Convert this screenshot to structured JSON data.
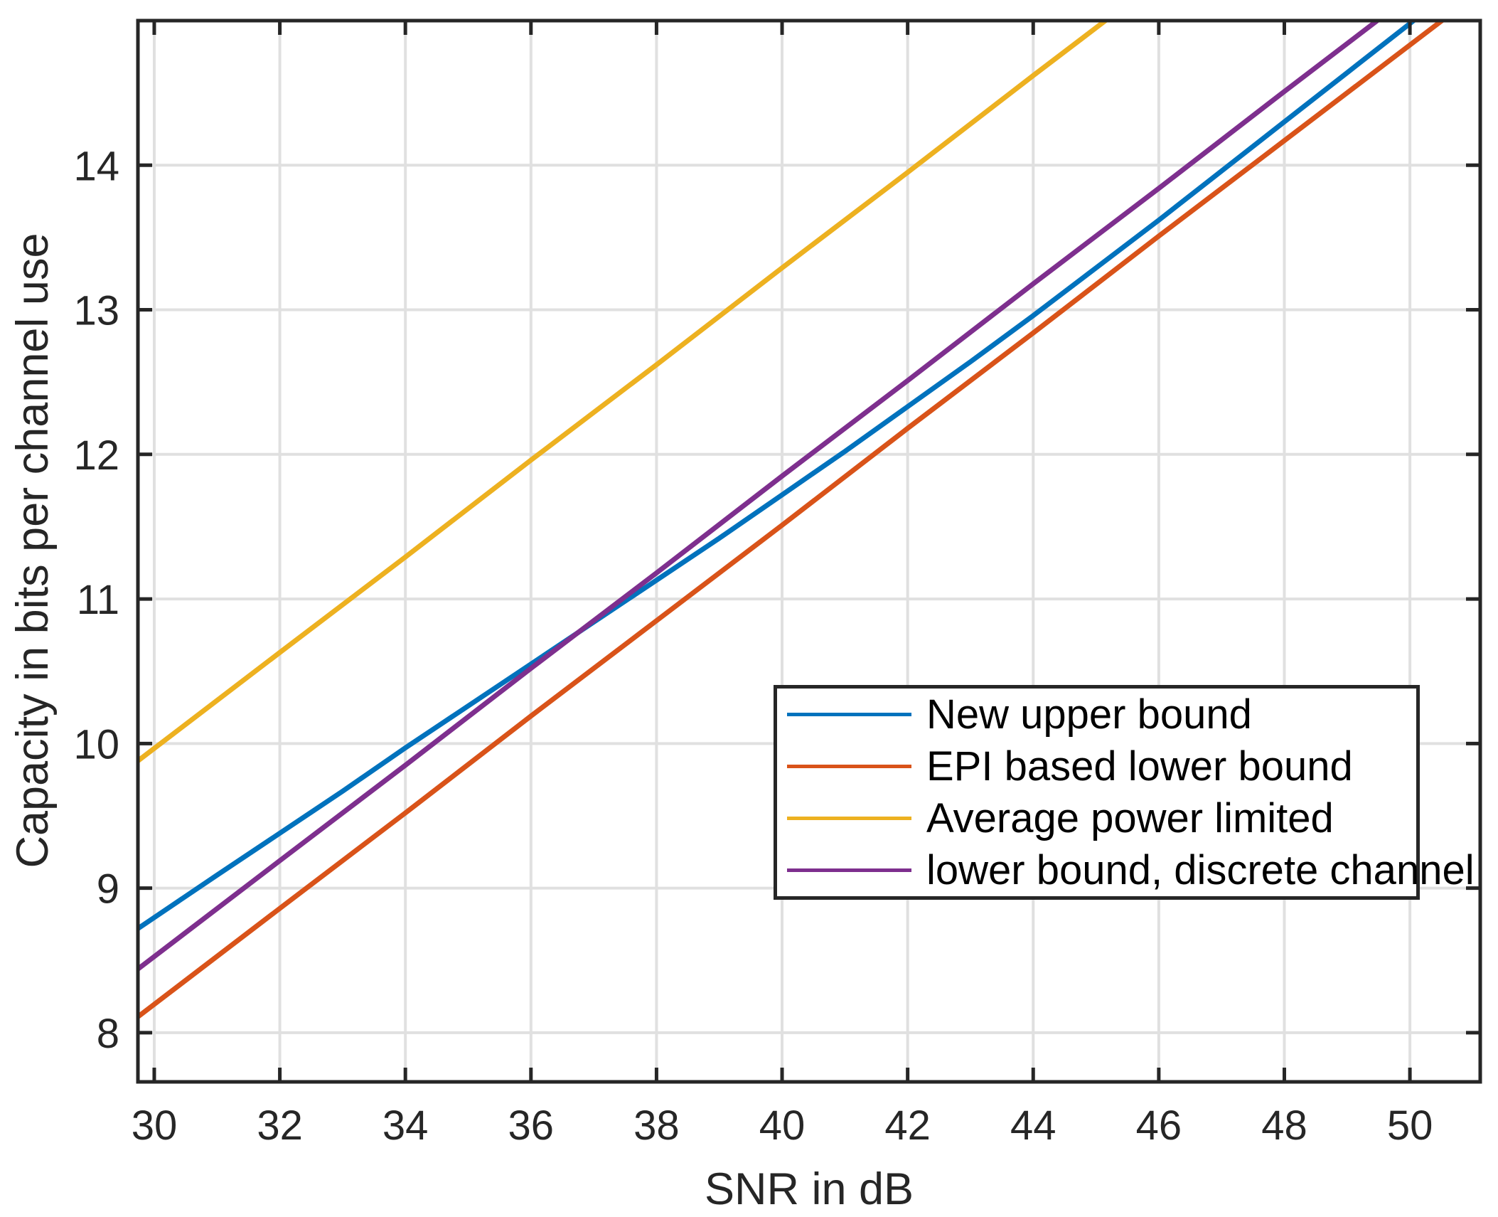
{
  "chart_data": {
    "type": "line",
    "title": "",
    "xlabel": "SNR in dB",
    "ylabel": "Capacity in bits per channel use",
    "xlim": [
      29.74,
      51.12
    ],
    "ylim": [
      7.66,
      15.0
    ],
    "xticks": [
      30,
      32,
      34,
      36,
      38,
      40,
      42,
      44,
      46,
      48,
      50
    ],
    "yticks": [
      8,
      9,
      10,
      11,
      12,
      13,
      14
    ],
    "grid": true,
    "legend": {
      "position": "inside-bottom-right",
      "entries": [
        "New upper bound",
        "EPI based lower bound",
        "Average power limited",
        "lower bound, discrete channel"
      ]
    },
    "series": [
      {
        "name": "New upper bound",
        "color": "#0072BD",
        "points": [
          [
            29.74,
            8.72
          ],
          [
            31,
            9.09
          ],
          [
            32,
            9.38
          ],
          [
            33,
            9.67
          ],
          [
            34,
            9.97
          ],
          [
            35,
            10.26
          ],
          [
            36,
            10.55
          ],
          [
            37,
            10.84
          ],
          [
            38,
            11.13
          ],
          [
            39,
            11.42
          ],
          [
            40,
            11.72
          ],
          [
            41,
            12.02
          ],
          [
            42,
            12.33
          ],
          [
            43,
            12.64
          ],
          [
            44,
            12.96
          ],
          [
            45,
            13.29
          ],
          [
            46,
            13.62
          ],
          [
            47,
            13.96
          ],
          [
            48,
            14.3
          ],
          [
            49,
            14.64
          ],
          [
            50,
            14.98
          ],
          [
            50.4,
            15.12
          ]
        ]
      },
      {
        "name": "EPI based lower bound",
        "color": "#D95319",
        "points": [
          [
            29.74,
            8.11
          ],
          [
            32,
            8.86
          ],
          [
            34,
            9.52
          ],
          [
            36,
            10.19
          ],
          [
            38,
            10.85
          ],
          [
            40,
            11.51
          ],
          [
            42,
            12.18
          ],
          [
            44,
            12.84
          ],
          [
            46,
            13.51
          ],
          [
            48,
            14.17
          ],
          [
            50.51,
            15.0
          ],
          [
            51.12,
            15.2
          ]
        ]
      },
      {
        "name": "Average power limited",
        "color": "#EDB120",
        "points": [
          [
            29.74,
            9.88
          ],
          [
            32,
            10.63
          ],
          [
            34,
            11.29
          ],
          [
            36,
            11.96
          ],
          [
            38,
            12.62
          ],
          [
            40,
            13.29
          ],
          [
            42,
            13.95
          ],
          [
            44,
            14.62
          ],
          [
            45.15,
            15.0
          ],
          [
            45.35,
            15.07
          ]
        ]
      },
      {
        "name": "lower bound, discrete channel",
        "color": "#7E2F8E",
        "points": [
          [
            29.74,
            8.44
          ],
          [
            32,
            9.19
          ],
          [
            34,
            9.85
          ],
          [
            36,
            10.52
          ],
          [
            38,
            11.18
          ],
          [
            40,
            11.85
          ],
          [
            42,
            12.51
          ],
          [
            44,
            13.18
          ],
          [
            46,
            13.84
          ],
          [
            48,
            14.51
          ],
          [
            49.45,
            14.99
          ],
          [
            49.65,
            15.06
          ]
        ]
      }
    ]
  },
  "style": {
    "axis_color": "#262626",
    "grid_color": "#E0E0E0",
    "background": "#FFFFFF",
    "tick_label_color": "#262626",
    "legend_text_color": "#000000",
    "legend_border_color": "#262626"
  }
}
